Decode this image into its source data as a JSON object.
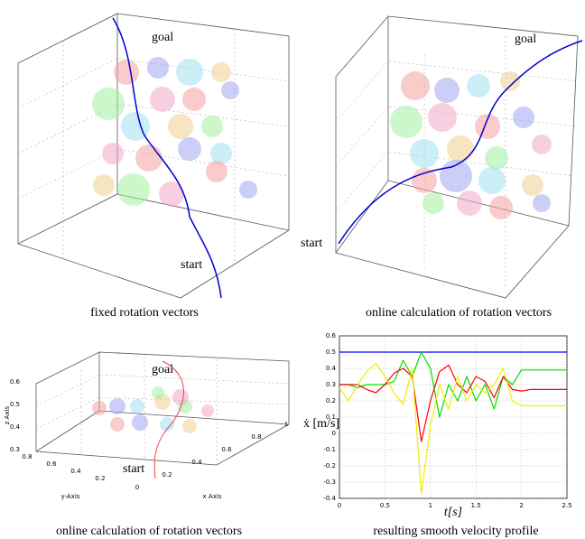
{
  "panels": [
    {
      "caption": "fixed rotation vectors",
      "goal": "goal",
      "start": "start"
    },
    {
      "caption": "online calculation of rotation vectors",
      "goal": "goal",
      "start": "start"
    },
    {
      "caption": "online calculation of rotation vectors",
      "goal": "goal",
      "start": "start",
      "zlabel": "z Axis",
      "ylabel": "y-Axis",
      "xlabel": "x Axis",
      "zticks": [
        0.3,
        0.4,
        0.5,
        0.6
      ],
      "yticks": [
        0.8,
        0.6,
        0.4,
        0.2
      ],
      "xticks": [
        0,
        0.2,
        0.4,
        0.6,
        0.8,
        1
      ]
    }
  ],
  "chart_data": {
    "type": "line",
    "caption": "resulting smooth velocity profile",
    "xlabel": "t[s]",
    "ylabel": "ẋ [m/s]",
    "x": [
      0,
      0.1,
      0.2,
      0.3,
      0.4,
      0.5,
      0.6,
      0.7,
      0.8,
      0.9,
      1.0,
      1.1,
      1.2,
      1.3,
      1.4,
      1.5,
      1.6,
      1.7,
      1.8,
      1.9,
      2.0,
      2.1,
      2.2,
      2.3,
      2.4,
      2.5
    ],
    "series": [
      {
        "color": "#0000ff",
        "values": [
          0.5,
          0.5,
          0.5,
          0.5,
          0.5,
          0.5,
          0.5,
          0.5,
          0.5,
          0.5,
          0.5,
          0.5,
          0.5,
          0.5,
          0.5,
          0.5,
          0.5,
          0.5,
          0.5,
          0.5,
          0.5,
          0.5,
          0.5,
          0.5,
          0.5,
          0.5
        ]
      },
      {
        "color": "#00dd00",
        "values": [
          0.3,
          0.3,
          0.28,
          0.3,
          0.3,
          0.3,
          0.32,
          0.45,
          0.35,
          0.5,
          0.4,
          0.1,
          0.3,
          0.2,
          0.35,
          0.2,
          0.3,
          0.15,
          0.35,
          0.3,
          0.39,
          0.39,
          0.39,
          0.39,
          0.39,
          0.39
        ]
      },
      {
        "color": "#ff0000",
        "values": [
          0.3,
          0.3,
          0.3,
          0.27,
          0.25,
          0.3,
          0.37,
          0.4,
          0.35,
          -0.05,
          0.2,
          0.38,
          0.42,
          0.3,
          0.25,
          0.35,
          0.32,
          0.22,
          0.35,
          0.27,
          0.26,
          0.27,
          0.27,
          0.27,
          0.27,
          0.27
        ]
      },
      {
        "color": "#eeee00",
        "values": [
          0.28,
          0.2,
          0.3,
          0.38,
          0.43,
          0.35,
          0.25,
          0.18,
          0.4,
          -0.37,
          0.05,
          0.3,
          0.15,
          0.35,
          0.2,
          0.3,
          0.25,
          0.3,
          0.4,
          0.2,
          0.17,
          0.17,
          0.17,
          0.17,
          0.17,
          0.17
        ]
      }
    ],
    "xlim": [
      0,
      2.5
    ],
    "xticks": [
      0,
      0.5,
      1,
      1.5,
      2,
      2.5
    ],
    "ylim": [
      -0.4,
      0.6
    ],
    "yticks": [
      -0.4,
      -0.3,
      -0.2,
      -0.1,
      0,
      0.1,
      0.2,
      0.3,
      0.4,
      0.5,
      0.6
    ],
    "grid": true
  }
}
